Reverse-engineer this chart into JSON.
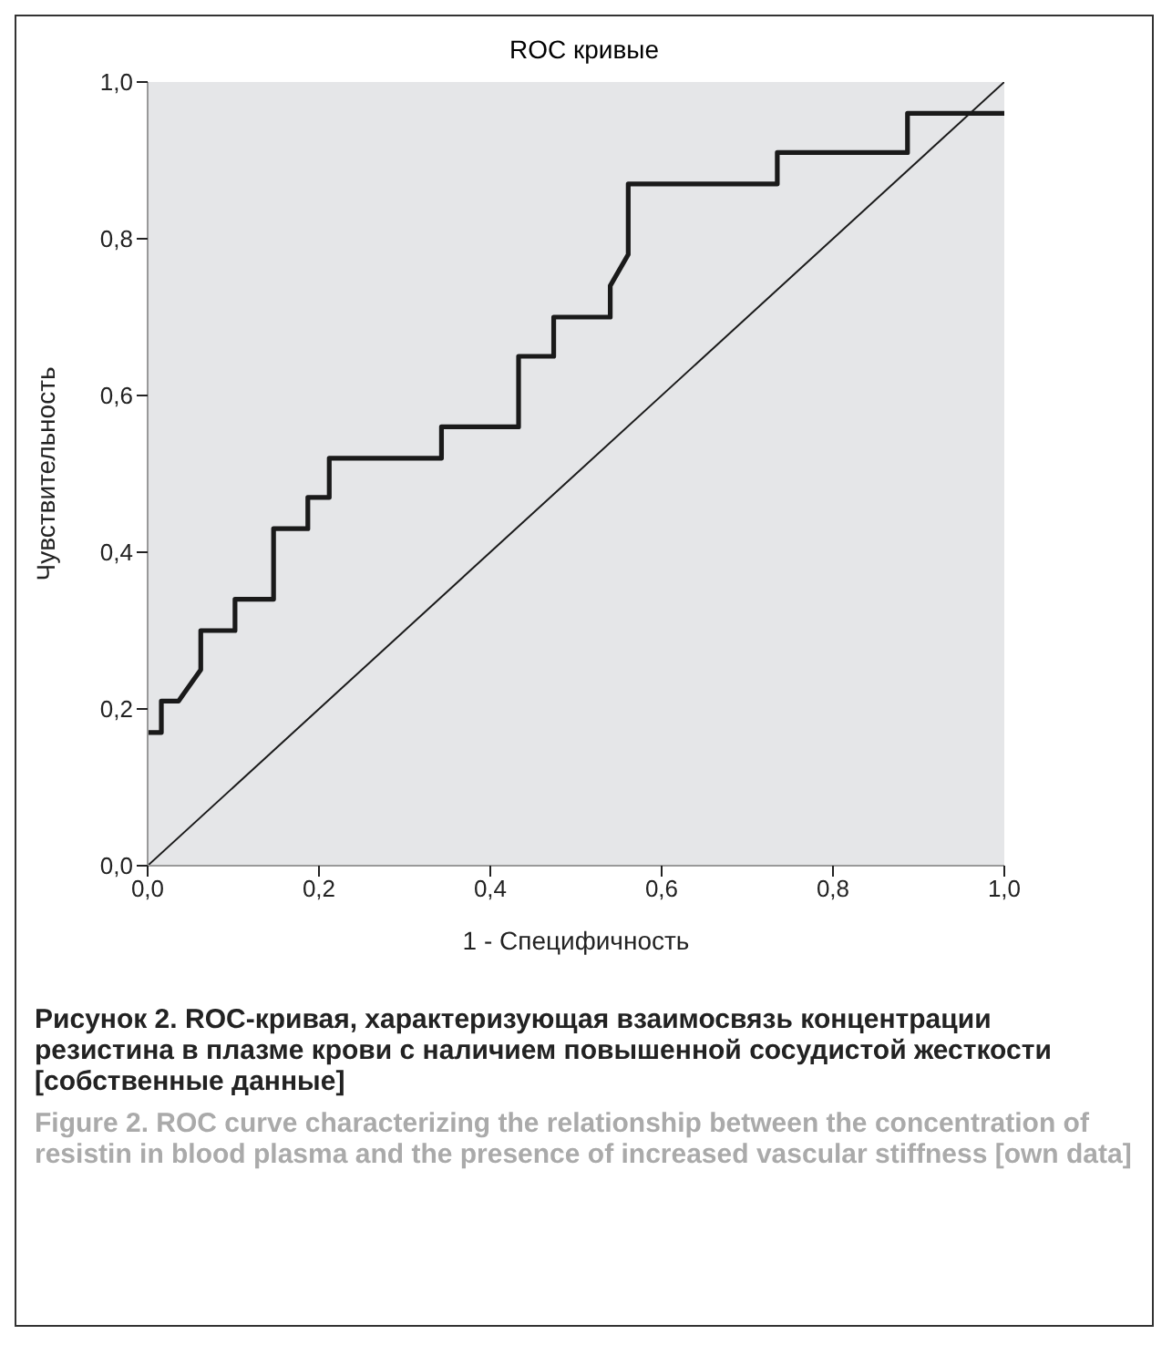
{
  "chart_data": {
    "type": "line",
    "title": "ROC кривые",
    "xlabel": "1 - Специфичность",
    "ylabel": "Чувствительность",
    "xlim": [
      0,
      1
    ],
    "ylim": [
      0,
      1
    ],
    "xticks": [
      {
        "value": 0,
        "label": "0,0"
      },
      {
        "value": 0.2,
        "label": "0,2"
      },
      {
        "value": 0.4,
        "label": "0,4"
      },
      {
        "value": 0.6,
        "label": "0,6"
      },
      {
        "value": 0.8,
        "label": "0,8"
      },
      {
        "value": 1,
        "label": "1,0"
      }
    ],
    "yticks": [
      {
        "value": 0,
        "label": "0,0"
      },
      {
        "value": 0.2,
        "label": "0,2"
      },
      {
        "value": 0.4,
        "label": "0,4"
      },
      {
        "value": 0.6,
        "label": "0,6"
      },
      {
        "value": 0.8,
        "label": "0,8"
      },
      {
        "value": 1,
        "label": "1,0"
      }
    ],
    "marker": "none",
    "line_style": "solid",
    "series": [
      {
        "color": "#1a1a1a",
        "x": [
          0,
          0.016,
          0.016,
          0.036,
          0.062,
          0.062,
          0.102,
          0.102,
          0.147,
          0.147,
          0.187,
          0.187,
          0.212,
          0.212,
          0.343,
          0.343,
          0.433,
          0.433,
          0.474,
          0.474,
          0.54,
          0.54,
          0.561,
          0.561,
          0.735,
          0.735,
          0.887,
          0.887,
          1
        ],
        "values": [
          0.17,
          0.17,
          0.21,
          0.21,
          0.25,
          0.3,
          0.3,
          0.34,
          0.34,
          0.43,
          0.43,
          0.47,
          0.47,
          0.52,
          0.52,
          0.56,
          0.56,
          0.65,
          0.65,
          0.7,
          0.7,
          0.74,
          0.78,
          0.87,
          0.87,
          0.91,
          0.91,
          0.96,
          0.96
        ]
      },
      {
        "color": "#1a1a1a",
        "x": [
          0,
          1
        ],
        "values": [
          0,
          1
        ]
      }
    ],
    "annotations": [
      "Рисунок 2. ROC-кривая, характеризующая взаимосвязь концентрации резистина в плазме крови с наличием повышенной сосудистой жесткости [собственные данные]",
      "Figure 2. ROC curve characterizing the relationship between the concentration of resistin in blood plasma and the presence of increased vascular stiffness [own data]"
    ]
  }
}
